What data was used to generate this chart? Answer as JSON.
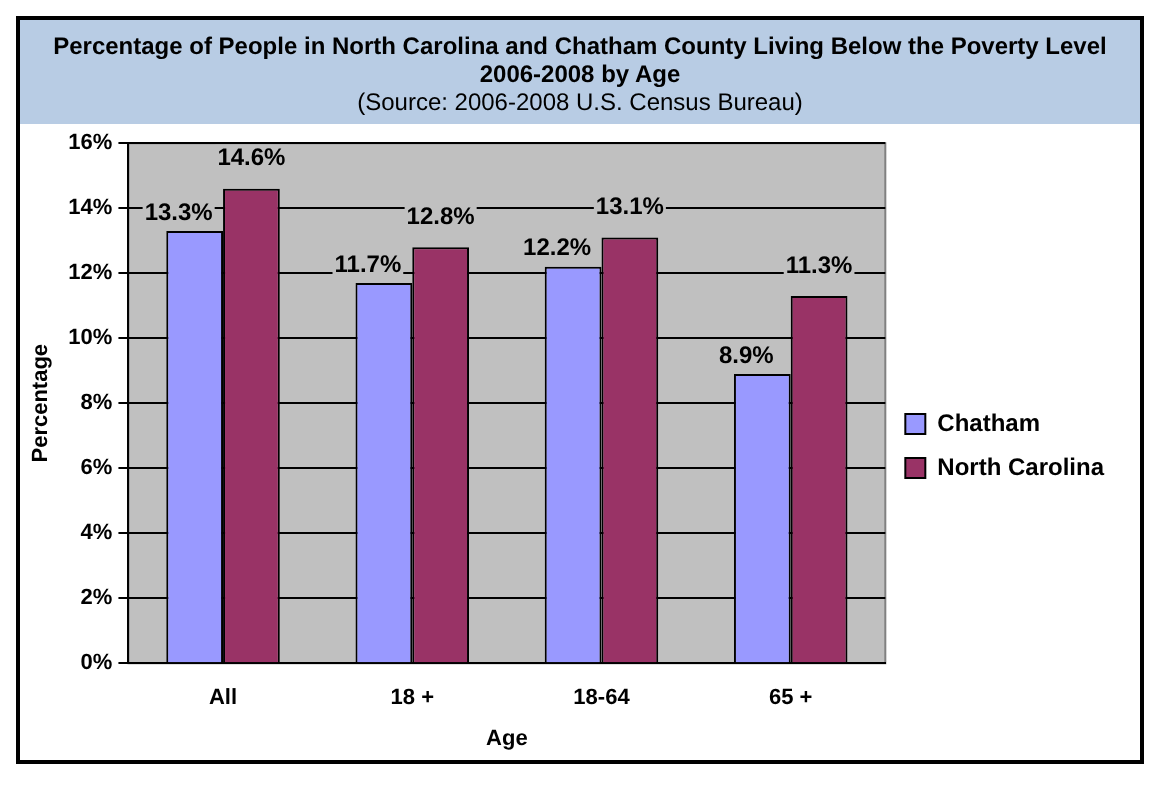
{
  "chart_data": {
    "type": "bar",
    "title": "Percentage of People in North Carolina and Chatham County Living Below the Poverty Level 2006-2008 by Age",
    "annotations": [
      "(Source:  2006-2008 U.S. Census Bureau)"
    ],
    "xlabel": "Age",
    "ylabel": "Percentage",
    "categories": [
      "All",
      "18 +",
      "18-64",
      "65 +"
    ],
    "series": [
      {
        "name": "Chatham",
        "color": "#9999ff",
        "values": [
          13.3,
          11.7,
          12.2,
          8.9
        ],
        "value_labels": [
          "13.3%",
          "11.7%",
          "12.2%",
          "8.9%"
        ]
      },
      {
        "name": "North Carolina",
        "color": "#993366",
        "values": [
          14.6,
          12.8,
          13.1,
          11.3
        ],
        "value_labels": [
          "14.6%",
          "12.8%",
          "13.1%",
          "11.3%"
        ]
      }
    ],
    "ylim": [
      0,
      16
    ],
    "yticks": [
      {
        "value": 0,
        "label": "0%"
      },
      {
        "value": 2,
        "label": "2%"
      },
      {
        "value": 4,
        "label": "4%"
      },
      {
        "value": 6,
        "label": "6%"
      },
      {
        "value": 8,
        "label": "8%"
      },
      {
        "value": 10,
        "label": "10%"
      },
      {
        "value": 12,
        "label": "12%"
      },
      {
        "value": 14,
        "label": "14%"
      },
      {
        "value": 16,
        "label": "16%"
      }
    ],
    "grid": "y",
    "legend": "right"
  }
}
